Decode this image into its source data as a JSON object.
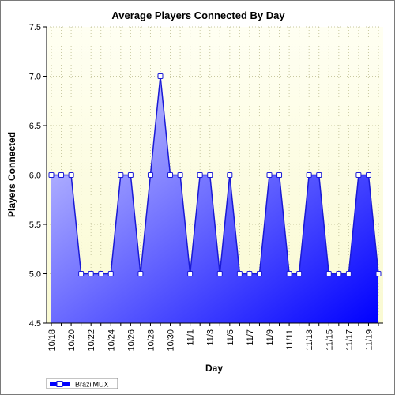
{
  "colors": {
    "plot_bg_top": "#fffff2",
    "plot_bg_bottom": "#fafad2",
    "line": "#1a1ad6",
    "fill_light": "#d6d6ff",
    "fill_dark": "#0000ff",
    "marker_fill": "#ffffff",
    "grid": "#c8c8a0"
  },
  "chart_data": {
    "type": "area",
    "title": "Average Players Connected By Day",
    "xlabel": "Day",
    "ylabel": "Players Connected",
    "ylim": [
      4.5,
      7.5
    ],
    "yticks": [
      "4.5",
      "5.0",
      "5.5",
      "6.0",
      "6.5",
      "7.0",
      "7.5"
    ],
    "grid": true,
    "legend": "bottom-left",
    "x": [
      "10/18",
      "10/19",
      "10/20",
      "10/21",
      "10/22",
      "10/23",
      "10/24",
      "10/25",
      "10/26",
      "10/27",
      "10/28",
      "10/29",
      "10/30",
      "10/31",
      "11/1",
      "11/2",
      "11/3",
      "11/4",
      "11/5",
      "11/6",
      "11/7",
      "11/8",
      "11/9",
      "11/10",
      "11/11",
      "11/12",
      "11/13",
      "11/14",
      "11/15",
      "11/16",
      "11/17",
      "11/18",
      "11/19",
      "11/20"
    ],
    "xtick_labels": [
      "10/18",
      "10/20",
      "10/22",
      "10/24",
      "10/26",
      "10/28",
      "10/30",
      "11/1",
      "11/3",
      "11/5",
      "11/7",
      "11/9",
      "11/11",
      "11/13",
      "11/15",
      "11/17",
      "11/19"
    ],
    "series": [
      {
        "name": "BrazilMUX",
        "values": [
          6.0,
          6.0,
          6.0,
          5.0,
          5.0,
          5.0,
          5.0,
          6.0,
          6.0,
          5.0,
          6.0,
          7.0,
          6.0,
          6.0,
          5.0,
          6.0,
          6.0,
          5.0,
          6.0,
          5.0,
          5.0,
          5.0,
          6.0,
          6.0,
          5.0,
          5.0,
          6.0,
          6.0,
          5.0,
          5.0,
          5.0,
          6.0,
          6.0,
          5.0
        ]
      }
    ]
  }
}
